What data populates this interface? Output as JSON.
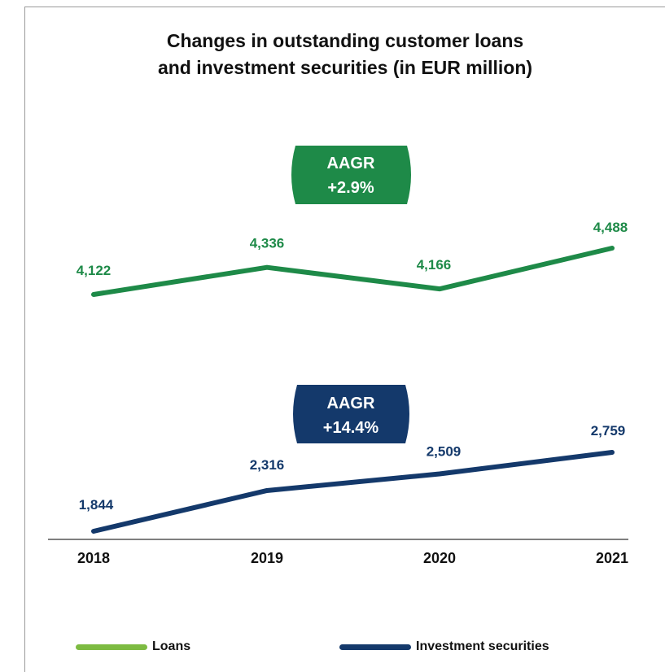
{
  "title_line1": "Changes in outstanding customer loans",
  "title_line2": "and investment securities (in EUR million)",
  "colors": {
    "loans": "#1e8a48",
    "loans_legend": "#7dbb42",
    "securities": "#14396b",
    "axis": "#333333",
    "text": "#111111"
  },
  "badges": {
    "loans": {
      "line1": "AAGR",
      "line2": "+2.9%"
    },
    "securities": {
      "line1": "AAGR",
      "line2": "+14.4%"
    }
  },
  "legend": {
    "loans": "Loans",
    "securities": "Investment securities"
  },
  "chart_data": {
    "type": "line",
    "categories": [
      "2018",
      "2019",
      "2020",
      "2021"
    ],
    "series": [
      {
        "name": "Loans",
        "values": [
          4122,
          4336,
          4166,
          4488
        ],
        "labels": [
          "4,122",
          "4,336",
          "4,166",
          "4,488"
        ]
      },
      {
        "name": "Investment securities",
        "values": [
          1844,
          2316,
          2509,
          2759
        ],
        "labels": [
          "1,844",
          "2,316",
          "2,509",
          "2,759"
        ]
      }
    ],
    "grid": false,
    "legend_position": "bottom"
  }
}
